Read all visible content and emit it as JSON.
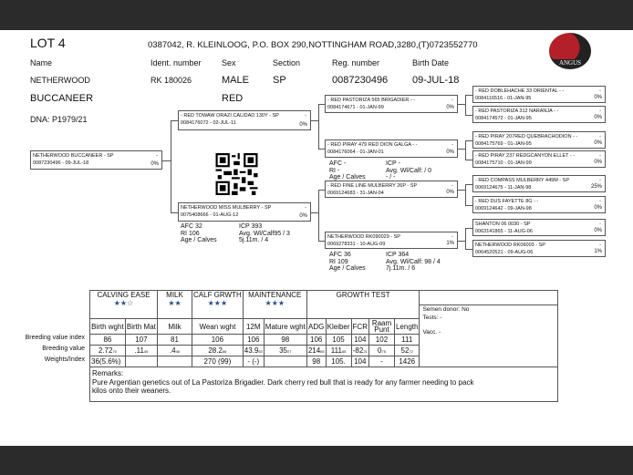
{
  "header": {
    "lot": "LOT 4",
    "breeder": "0387042, R. KLEINLOOG, P.O. BOX 290,NOTTINGHAM ROAD,3280,(T)0723552770",
    "logo_text": "ANGUS"
  },
  "labels": {
    "name": "Name",
    "ident": "Ident. number",
    "sex": "Sex",
    "section": "Section",
    "reg": "Reg. number",
    "birth": "Birth Date"
  },
  "animal": {
    "name1": "NETHERWOOD",
    "name2": "BUCCANEER",
    "ident": "RK  180026",
    "sex": "MALE",
    "color": "RED",
    "section": "SP",
    "reg": "0087230496",
    "birth": "09-JUL-18",
    "dna": "DNA: P1979/21"
  },
  "pedigree": [
    {
      "name": "NETHERWOOD BUCCANEER - SP",
      "id": "0087230496 -  09-JUL-18",
      "pct": "0%"
    },
    {
      "name": "- RED TOWAW ORAZI CALIDAD 130Y - SP",
      "id": "0084176072 - 02-JUL-11",
      "pct": "0%"
    },
    {
      "name": "NETHERWOOD MISS MULBERRY - SP",
      "id": "0075408666 - 01-AUG-12",
      "pct": "0%"
    },
    {
      "name": "- RED PASTORIZA 565 BRIGADIER - -",
      "id": "0084174671 - 01-JAN-99",
      "pct": "0%"
    },
    {
      "name": "- RED PIRAY 479 RED DION GALGA - -",
      "id": "0084176064 - 01-JAN-01",
      "pct": "0%"
    },
    {
      "name": "- RED FINE LINE MULBERRY 26P - SP",
      "id": "0069124683 - 31-JAN-04",
      "pct": "0%"
    },
    {
      "name": "NETHERWOOD RK090029 - SP",
      "id": "0069278331 - 10-AUG-09",
      "pct": "1%"
    },
    {
      "name": "- RED DOBLEHACHE 33 ORIENTAL - -",
      "id": "0084116516 - 01-JAN-95",
      "pct": "0%"
    },
    {
      "name": "- RED PASTORIZA 312 NARANJA - -",
      "id": "0084174572 - 01-JAN-95",
      "pct": "0%"
    },
    {
      "name": "- RED PIRAY 207RED QUEBRACHODION - -",
      "id": "0084175769 - 01-JAN-95",
      "pct": "0%"
    },
    {
      "name": "- RED PIRAY 237 REDGCANYON ELLET - -",
      "id": "0084175710 - 01-JAN-99",
      "pct": "0%"
    },
    {
      "name": "- RED COMPASS MULBERRY 449M - SP",
      "id": "0069124675 - 11-JAN-98",
      "pct": "25%"
    },
    {
      "name": "- RED DUS FAYETTE 8G - -",
      "id": "0069124642 - 09-JAN-98",
      "pct": "0%"
    },
    {
      "name": "SHANTON 06 0030 - SP",
      "id": "0063141865 - 11-AUG-06",
      "pct": "0%"
    },
    {
      "name": "NETHERWOOD RK06003 - SP",
      "id": "0064520521 - 09-AUG-06",
      "pct": "1%"
    }
  ],
  "dam_stats": [
    {
      "afc": "AFC        32",
      "icp": "ICP       393",
      "ri": "RI   106",
      "avg": "Avg. Wl/Calf95 / 3",
      "age": "Age / Calves",
      "agev": "5j.11m. / 4"
    },
    {
      "afc": "AFC        -",
      "icp": "ICP        -",
      "ri": "RI     -",
      "avg": "Avg. Wl/Calf:  / 0",
      "age": "Age / Calves",
      "agev": "- / -"
    },
    {
      "afc": "AFC       36",
      "icp": "ICP      364",
      "ri": "RI        109",
      "avg": "Avg. Wl/Calf:  98 / 4",
      "age": "Age / Calves",
      "agev": "7j.11m. / 6"
    }
  ],
  "table": {
    "groups": [
      "CALVING EASE",
      "MILK",
      "CALF GRWTH",
      "MAINTENANCE",
      "GROWTH TEST"
    ],
    "stars": [
      "★★☆",
      "★★",
      "★★★",
      "★★★"
    ],
    "columns": [
      "Birth wght",
      "Birth Mat",
      "Milk",
      "Wean wght",
      "12M",
      "Mature wght",
      "ADG",
      "Kleiber",
      "FCR",
      "Raam Punt",
      "Length"
    ],
    "row_labels": [
      "Breeding value index",
      "Breeding value",
      "Weights/Index"
    ],
    "index": [
      "86",
      "107",
      "81",
      "106",
      "106",
      "98",
      "106",
      "105",
      "104",
      "102",
      "111"
    ],
    "bv": [
      [
        "2.72",
        "70"
      ],
      [
        ".11",
        "45"
      ],
      [
        ".4",
        "46"
      ],
      [
        "28.2",
        "66"
      ],
      [
        "43.9",
        "63"
      ],
      [
        "35",
        "27"
      ],
      [
        "214",
        "65"
      ],
      [
        "111",
        "65"
      ],
      [
        "-82",
        "21"
      ],
      [
        "0",
        "75"
      ],
      [
        "52",
        "72"
      ]
    ],
    "weights": [
      "36(5.6%)",
      "",
      "",
      "270  (99)",
      "-  (-)",
      "",
      "98",
      "105.",
      "104",
      "-",
      "1426"
    ],
    "side": {
      "semen": "Semen donor: No",
      "tests": "Tests: -",
      "vacc": "Vacc. -"
    },
    "remarks_label": "Remarks:",
    "remarks": "Pure Argentian genetics out of La Pastoriza Brigadier. Dark cherry red bull that is ready for any farmer needing to pack kilos onto their weaners."
  }
}
